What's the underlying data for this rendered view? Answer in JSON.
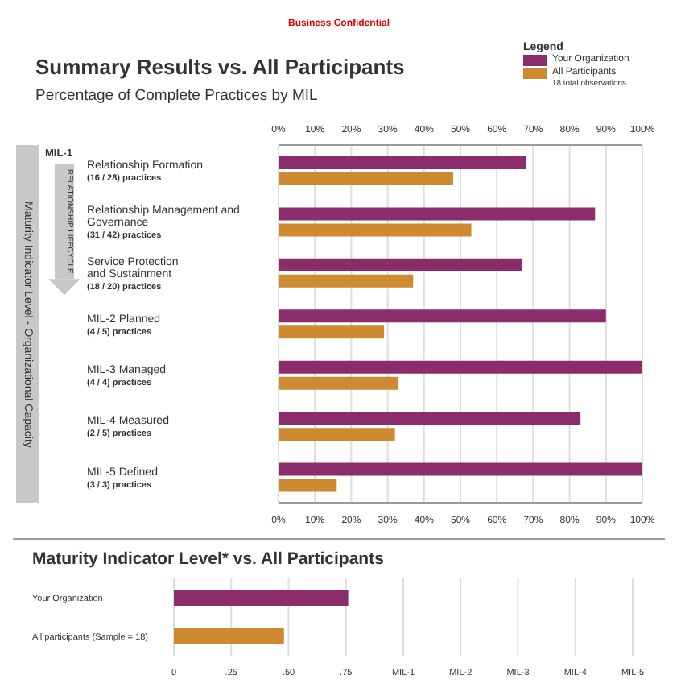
{
  "chart_data": [
    {
      "type": "bar",
      "orientation": "horizontal",
      "title": "Summary Results vs. All Participants",
      "subtitle": "Percentage of Complete Practices by MIL",
      "ylabel": "Maturity Indicator Level - Organizational Capacity",
      "legend_title": "Legend",
      "legend": "top right",
      "grid": "x",
      "annotations": [
        "Business Confidential",
        "MIL-1",
        "RELATIONSHIP LIFECYCLE",
        "18 total observations"
      ],
      "categories": [
        "Relationship Formation\n(16 / 28) practices",
        "Relationship Management and\nGovernance\n(31 / 42) practices",
        "Service Protection\nand Sustainment\n(18 / 20) practices",
        "MIL-2 Planned\n(4 / 5) practices",
        "MIL-3 Managed\n(4 / 4) practices",
        "MIL-4 Measured\n(2 / 5) practices",
        "MIL-5 Defined\n(3 / 3) practices"
      ],
      "series": [
        {
          "name": "Your Organization",
          "color": "#8b2d6b",
          "values": [
            68,
            87,
            67,
            90,
            100,
            83,
            100
          ]
        },
        {
          "name": "All Participants",
          "color": "#cd8a30",
          "values": [
            48,
            53,
            37,
            29,
            33,
            32,
            16
          ]
        }
      ],
      "xlim": [
        0,
        100
      ],
      "xticks": [
        {
          "value": 0,
          "label": "0%"
        },
        {
          "value": 10,
          "label": "10%"
        },
        {
          "value": 20,
          "label": "20%"
        },
        {
          "value": 30,
          "label": "30%"
        },
        {
          "value": 40,
          "label": "40%"
        },
        {
          "value": 50,
          "label": "50%"
        },
        {
          "value": 60,
          "label": "60%"
        },
        {
          "value": 70,
          "label": "70%"
        },
        {
          "value": 80,
          "label": "80%"
        },
        {
          "value": 90,
          "label": "90%"
        },
        {
          "value": 100,
          "label": "100%"
        }
      ],
      "x2lim": [
        0,
        100
      ],
      "x2ticks": [
        {
          "value": 0,
          "label": "0%"
        },
        {
          "value": 10,
          "label": "10%"
        },
        {
          "value": 20,
          "label": "20%"
        },
        {
          "value": 30,
          "label": "30%"
        },
        {
          "value": 40,
          "label": "40%"
        },
        {
          "value": 50,
          "label": "50%"
        },
        {
          "value": 60,
          "label": "60%"
        },
        {
          "value": 70,
          "label": "70%"
        },
        {
          "value": 80,
          "label": "80%"
        },
        {
          "value": 90,
          "label": "90%"
        },
        {
          "value": 100,
          "label": "100%"
        }
      ]
    },
    {
      "type": "bar",
      "orientation": "horizontal",
      "title": "Maturity Indicator Level* vs. All Participants",
      "grid": "x",
      "categories": [
        "Your Organization",
        "All participants (Sample = 18)"
      ],
      "values": [
        0.76,
        0.48
      ],
      "colors": [
        "#8b2d6b",
        "#cd8a30"
      ],
      "xlim": [
        0,
        2
      ],
      "xticks": [
        {
          "value": 0,
          "label": "0"
        },
        {
          "value": 0.25,
          "label": ".25"
        },
        {
          "value": 0.5,
          "label": ".50"
        },
        {
          "value": 0.75,
          "label": ".75"
        },
        {
          "value": 1,
          "label": "MIL-1"
        },
        {
          "value": 1.25,
          "label": "MIL-2"
        },
        {
          "value": 1.5,
          "label": "MIL-3"
        },
        {
          "value": 1.75,
          "label": "MIL-4"
        },
        {
          "value": 2,
          "label": "MIL-5"
        }
      ]
    }
  ]
}
